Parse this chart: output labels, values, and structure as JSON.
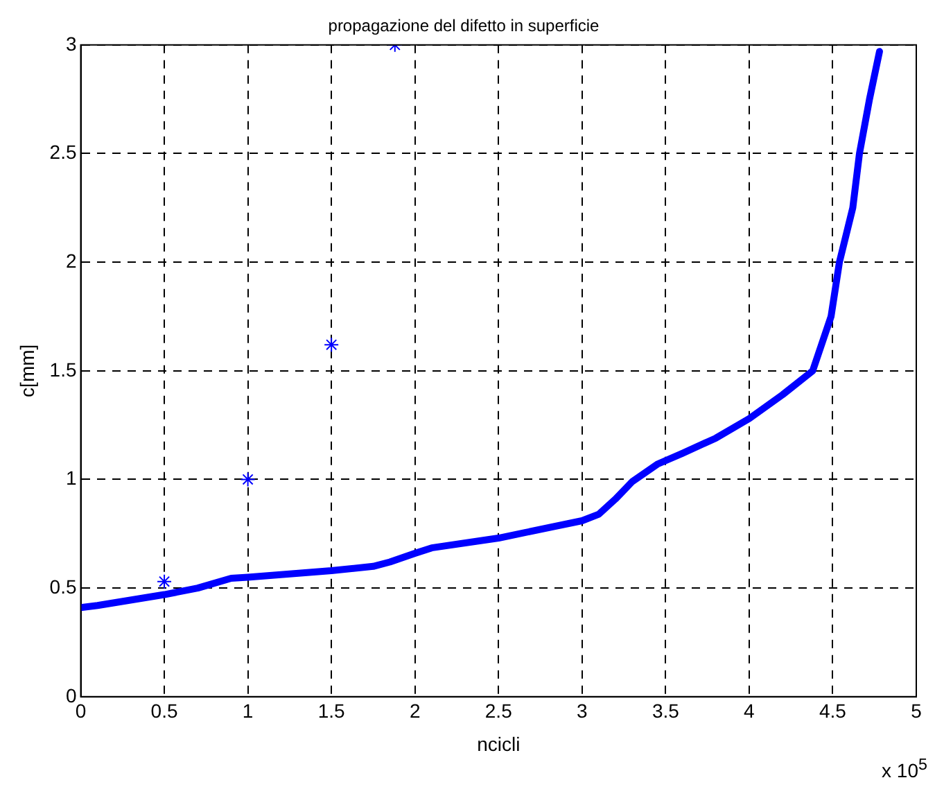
{
  "chart_data": {
    "type": "line",
    "title": "propagazione del difetto in superficie",
    "xlabel": "ncicli",
    "ylabel": "c[mm]",
    "annotations": [
      "x 10$^{5}$"
    ],
    "xlim": [
      0,
      5
    ],
    "xticks": [
      0,
      0.5,
      1,
      1.5,
      2,
      2.5,
      3,
      3.5,
      4,
      4.5,
      5
    ],
    "ylim": [
      0,
      3
    ],
    "yticks": [
      0,
      0.5,
      1,
      1.5,
      2,
      2.5,
      3
    ],
    "grid": true,
    "legend": false,
    "series": [
      {
        "color": "#0000ff",
        "marker": "none",
        "line_style": "solid",
        "x": [
          0,
          0.1,
          0.5,
          0.7,
          0.9,
          1.0,
          1.5,
          1.75,
          1.85,
          2.0,
          2.1,
          2.5,
          3.0,
          3.1,
          3.2,
          3.3,
          3.45,
          3.6,
          3.8,
          4.0,
          4.2,
          4.38,
          4.49,
          4.54,
          4.62,
          4.66,
          4.72,
          4.78
        ],
        "values": [
          0.41,
          0.42,
          0.47,
          0.5,
          0.545,
          0.55,
          0.58,
          0.6,
          0.62,
          0.66,
          0.685,
          0.73,
          0.81,
          0.84,
          0.91,
          0.99,
          1.07,
          1.12,
          1.19,
          1.28,
          1.39,
          1.5,
          1.75,
          2,
          2.25,
          2.5,
          2.75,
          2.97
        ]
      },
      {
        "type": "scatter",
        "color": "#0000ff",
        "marker": "cross",
        "x": [
          0.5,
          1,
          1.5,
          1.88
        ],
        "values": [
          0.53,
          1,
          1.62,
          3
        ]
      }
    ]
  }
}
